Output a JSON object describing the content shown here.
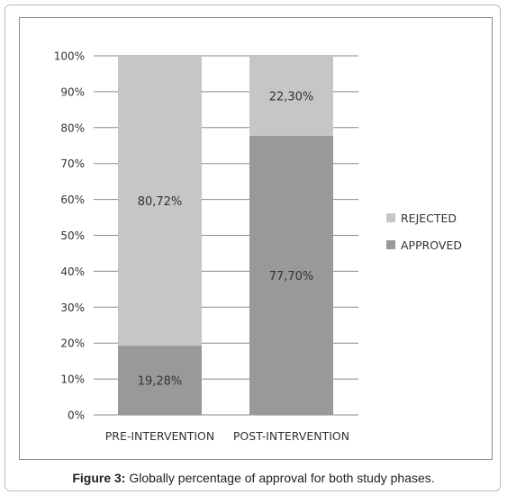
{
  "chart_data": {
    "type": "bar",
    "stacked": true,
    "categories": [
      "PRE-INTERVENTION",
      "POST-INTERVENTION"
    ],
    "series": [
      {
        "name": "APPROVED",
        "values": [
          19.28,
          77.7
        ],
        "labels": [
          "19,28%",
          "77,70%"
        ],
        "color": "#999999"
      },
      {
        "name": "REJECTED",
        "values": [
          80.72,
          22.3
        ],
        "labels": [
          "80,72%",
          "22,30%"
        ],
        "color": "#c6c6c6"
      }
    ],
    "ylim": [
      0,
      100
    ],
    "yticks": [
      "0%",
      "10%",
      "20%",
      "30%",
      "40%",
      "50%",
      "60%",
      "70%",
      "80%",
      "90%",
      "100%"
    ],
    "grid": true,
    "legend_placement": "right",
    "legend_order": [
      "REJECTED",
      "APPROVED"
    ]
  },
  "caption": {
    "label": "Figure 3:",
    "text": " Globally percentage of approval for both study phases."
  }
}
